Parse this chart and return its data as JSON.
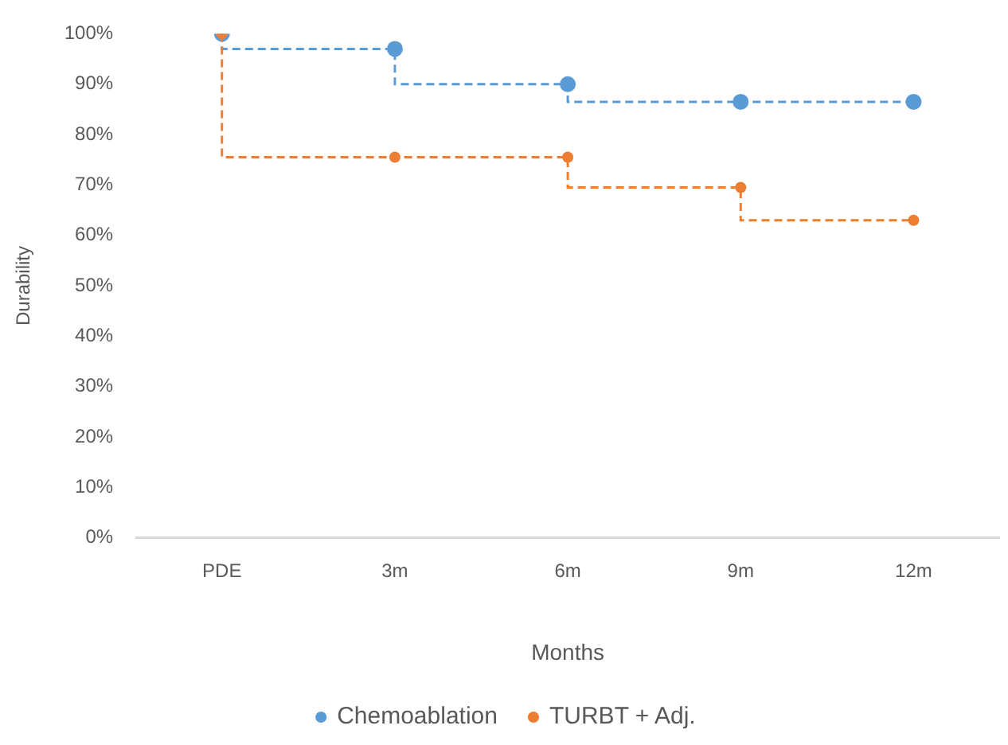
{
  "chart_data": {
    "type": "step",
    "xlabel": "Months",
    "ylabel": "Durability",
    "categories": [
      "PDE",
      "3m",
      "6m",
      "9m",
      "12m"
    ],
    "series": [
      {
        "name": "Chemoablation",
        "color": "#5b9bd5",
        "values": [
          100,
          97,
          90,
          86.5,
          86.5
        ]
      },
      {
        "name": "TURBT + Adj.",
        "color": "#ed7d31",
        "values": [
          100,
          75.5,
          75.5,
          69.5,
          63
        ]
      }
    ],
    "ylim": [
      0,
      100
    ],
    "yticks": [
      {
        "value": 0,
        "label": "0%"
      },
      {
        "value": 10,
        "label": "10%"
      },
      {
        "value": 20,
        "label": "20%"
      },
      {
        "value": 30,
        "label": "30%"
      },
      {
        "value": 40,
        "label": "40%"
      },
      {
        "value": 50,
        "label": "50%"
      },
      {
        "value": 60,
        "label": "60%"
      },
      {
        "value": 70,
        "label": "70%"
      },
      {
        "value": 80,
        "label": "80%"
      },
      {
        "value": 90,
        "label": "90%"
      },
      {
        "value": 100,
        "label": "100%"
      }
    ],
    "grid": false,
    "legend": "bottom",
    "marker": "circle",
    "line_style": "dashed"
  }
}
